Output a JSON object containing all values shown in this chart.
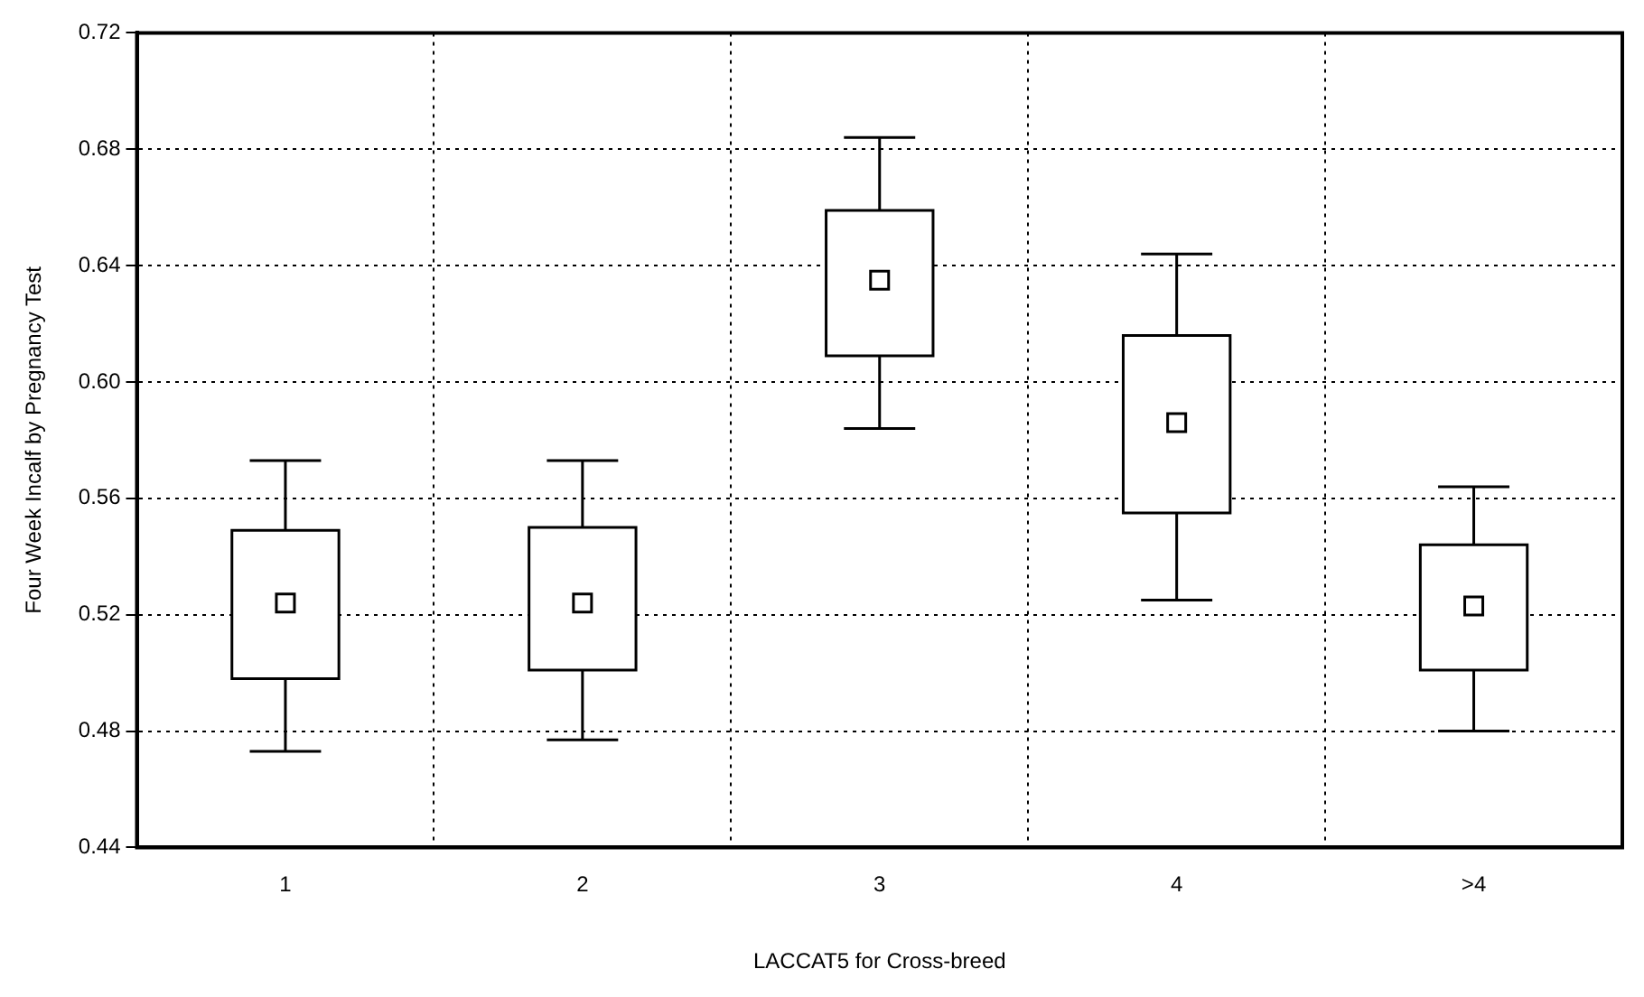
{
  "chart_data": {
    "type": "box",
    "xlabel": "LACCAT5 for Cross-breed",
    "ylabel": "Four Week Incalf by Pregnancy Test",
    "categories": [
      "1",
      "2",
      "3",
      "4",
      ">4"
    ],
    "boxes": [
      {
        "low": 0.473,
        "q1": 0.498,
        "median": 0.524,
        "q3": 0.549,
        "high": 0.573
      },
      {
        "low": 0.477,
        "q1": 0.501,
        "median": 0.524,
        "q3": 0.55,
        "high": 0.573
      },
      {
        "low": 0.584,
        "q1": 0.609,
        "median": 0.635,
        "q3": 0.659,
        "high": 0.684
      },
      {
        "low": 0.525,
        "q1": 0.555,
        "median": 0.586,
        "q3": 0.616,
        "high": 0.644
      },
      {
        "low": 0.48,
        "q1": 0.501,
        "median": 0.523,
        "q3": 0.544,
        "high": 0.564
      }
    ],
    "ylim": [
      0.44,
      0.72
    ],
    "yticks": [
      0.44,
      0.48,
      0.52,
      0.56,
      {
        "value": 0.6,
        "label": "0.60"
      },
      0.64,
      0.68,
      0.72
    ],
    "grid": true,
    "legend": false,
    "marker": "square",
    "color": "#ffffff"
  }
}
